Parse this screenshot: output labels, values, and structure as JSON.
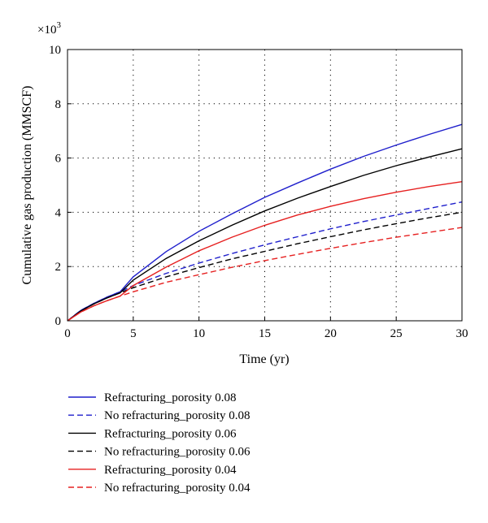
{
  "chart_data": {
    "type": "line",
    "title": "",
    "xlabel": "Time (yr)",
    "ylabel": "Cumulative gas production (MMSCF)",
    "y_multiplier": "×10",
    "y_multiplier_exp": "3",
    "xlim": [
      0,
      30
    ],
    "ylim": [
      0,
      10
    ],
    "x_ticks": [
      0,
      5,
      10,
      15,
      20,
      25,
      30
    ],
    "y_ticks": [
      0,
      2,
      4,
      6,
      8,
      10
    ],
    "grid": "dotted",
    "legend_position": "bottom",
    "series": [
      {
        "name": "Refracturing_porosity 0.08",
        "color": "#1f1fcc",
        "dash": "solid",
        "x": [
          0,
          1,
          2,
          3,
          4,
          5,
          7.5,
          10,
          12.5,
          15,
          17.5,
          20,
          22.5,
          25,
          27.5,
          30
        ],
        "y": [
          0,
          0.38,
          0.64,
          0.87,
          1.07,
          1.62,
          2.55,
          3.3,
          3.94,
          4.55,
          5.08,
          5.59,
          6.06,
          6.48,
          6.87,
          7.24
        ]
      },
      {
        "name": "No refracturing_porosity 0.08",
        "color": "#1f1fcc",
        "dash": "dashed",
        "x": [
          0,
          1,
          2,
          3,
          4,
          5,
          7.5,
          10,
          12.5,
          15,
          17.5,
          20,
          22.5,
          25,
          27.5,
          30
        ],
        "y": [
          0,
          0.38,
          0.64,
          0.87,
          1.07,
          1.3,
          1.75,
          2.13,
          2.48,
          2.8,
          3.1,
          3.39,
          3.66,
          3.9,
          4.14,
          4.38
        ]
      },
      {
        "name": "Refracturing_porosity 0.06",
        "color": "#000000",
        "dash": "solid",
        "x": [
          0,
          1,
          2,
          3,
          4,
          5,
          7.5,
          10,
          12.5,
          15,
          17.5,
          20,
          22.5,
          25,
          27.5,
          30
        ],
        "y": [
          0,
          0.36,
          0.62,
          0.84,
          1.03,
          1.5,
          2.3,
          2.95,
          3.52,
          4.05,
          4.52,
          4.95,
          5.36,
          5.72,
          6.04,
          6.34
        ]
      },
      {
        "name": "No refracturing_porosity 0.06",
        "color": "#000000",
        "dash": "dashed",
        "x": [
          0,
          1,
          2,
          3,
          4,
          5,
          7.5,
          10,
          12.5,
          15,
          17.5,
          20,
          22.5,
          25,
          27.5,
          30
        ],
        "y": [
          0,
          0.36,
          0.62,
          0.84,
          1.03,
          1.22,
          1.62,
          1.96,
          2.28,
          2.56,
          2.84,
          3.1,
          3.35,
          3.58,
          3.8,
          4.0
        ]
      },
      {
        "name": "Refracturing_porosity 0.04",
        "color": "#e62020",
        "dash": "solid",
        "x": [
          0,
          1,
          2,
          3,
          4,
          5,
          7.5,
          10,
          12.5,
          15,
          17.5,
          20,
          22.5,
          25,
          27.5,
          30
        ],
        "y": [
          0,
          0.32,
          0.55,
          0.74,
          0.91,
          1.3,
          1.98,
          2.58,
          3.08,
          3.52,
          3.9,
          4.22,
          4.5,
          4.74,
          4.95,
          5.13
        ]
      },
      {
        "name": "No refracturing_porosity 0.04",
        "color": "#e62020",
        "dash": "dashed",
        "x": [
          0,
          1,
          2,
          3,
          4,
          5,
          7.5,
          10,
          12.5,
          15,
          17.5,
          20,
          22.5,
          25,
          27.5,
          30
        ],
        "y": [
          0,
          0.32,
          0.55,
          0.74,
          0.91,
          1.07,
          1.42,
          1.7,
          1.97,
          2.22,
          2.45,
          2.67,
          2.88,
          3.08,
          3.26,
          3.44
        ]
      }
    ]
  }
}
